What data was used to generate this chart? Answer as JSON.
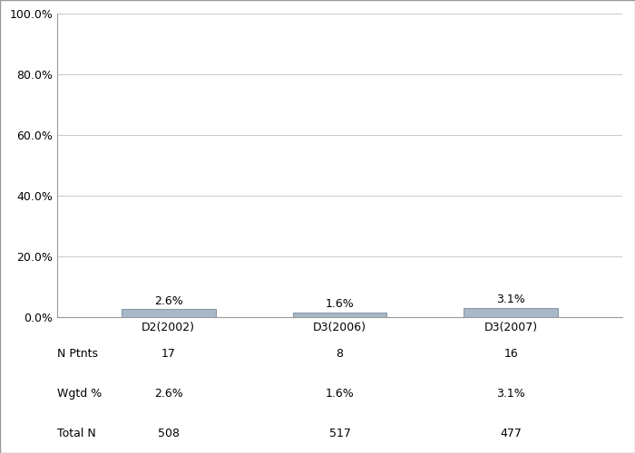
{
  "categories": [
    "D2(2002)",
    "D3(2006)",
    "D3(2007)"
  ],
  "values": [
    2.6,
    1.6,
    3.1
  ],
  "bar_color": "#a8b8c8",
  "bar_edge_color": "#8898a8",
  "bar_width": 0.55,
  "ylim": [
    0,
    100
  ],
  "yticks": [
    0,
    20,
    40,
    60,
    80,
    100
  ],
  "ytick_labels": [
    "0.0%",
    "20.0%",
    "40.0%",
    "60.0%",
    "80.0%",
    "100.0%"
  ],
  "ylabel": "",
  "xlabel": "",
  "value_labels": [
    "2.6%",
    "1.6%",
    "3.1%"
  ],
  "table_row_labels": [
    "N Ptnts",
    "Wgtd %",
    "Total N"
  ],
  "table_data": [
    [
      "17",
      "8",
      "16"
    ],
    [
      "2.6%",
      "1.6%",
      "3.1%"
    ],
    [
      "508",
      "517",
      "477"
    ]
  ],
  "background_color": "#ffffff",
  "grid_color": "#c8c8c8",
  "font_size": 9,
  "label_font_size": 9,
  "title": ""
}
